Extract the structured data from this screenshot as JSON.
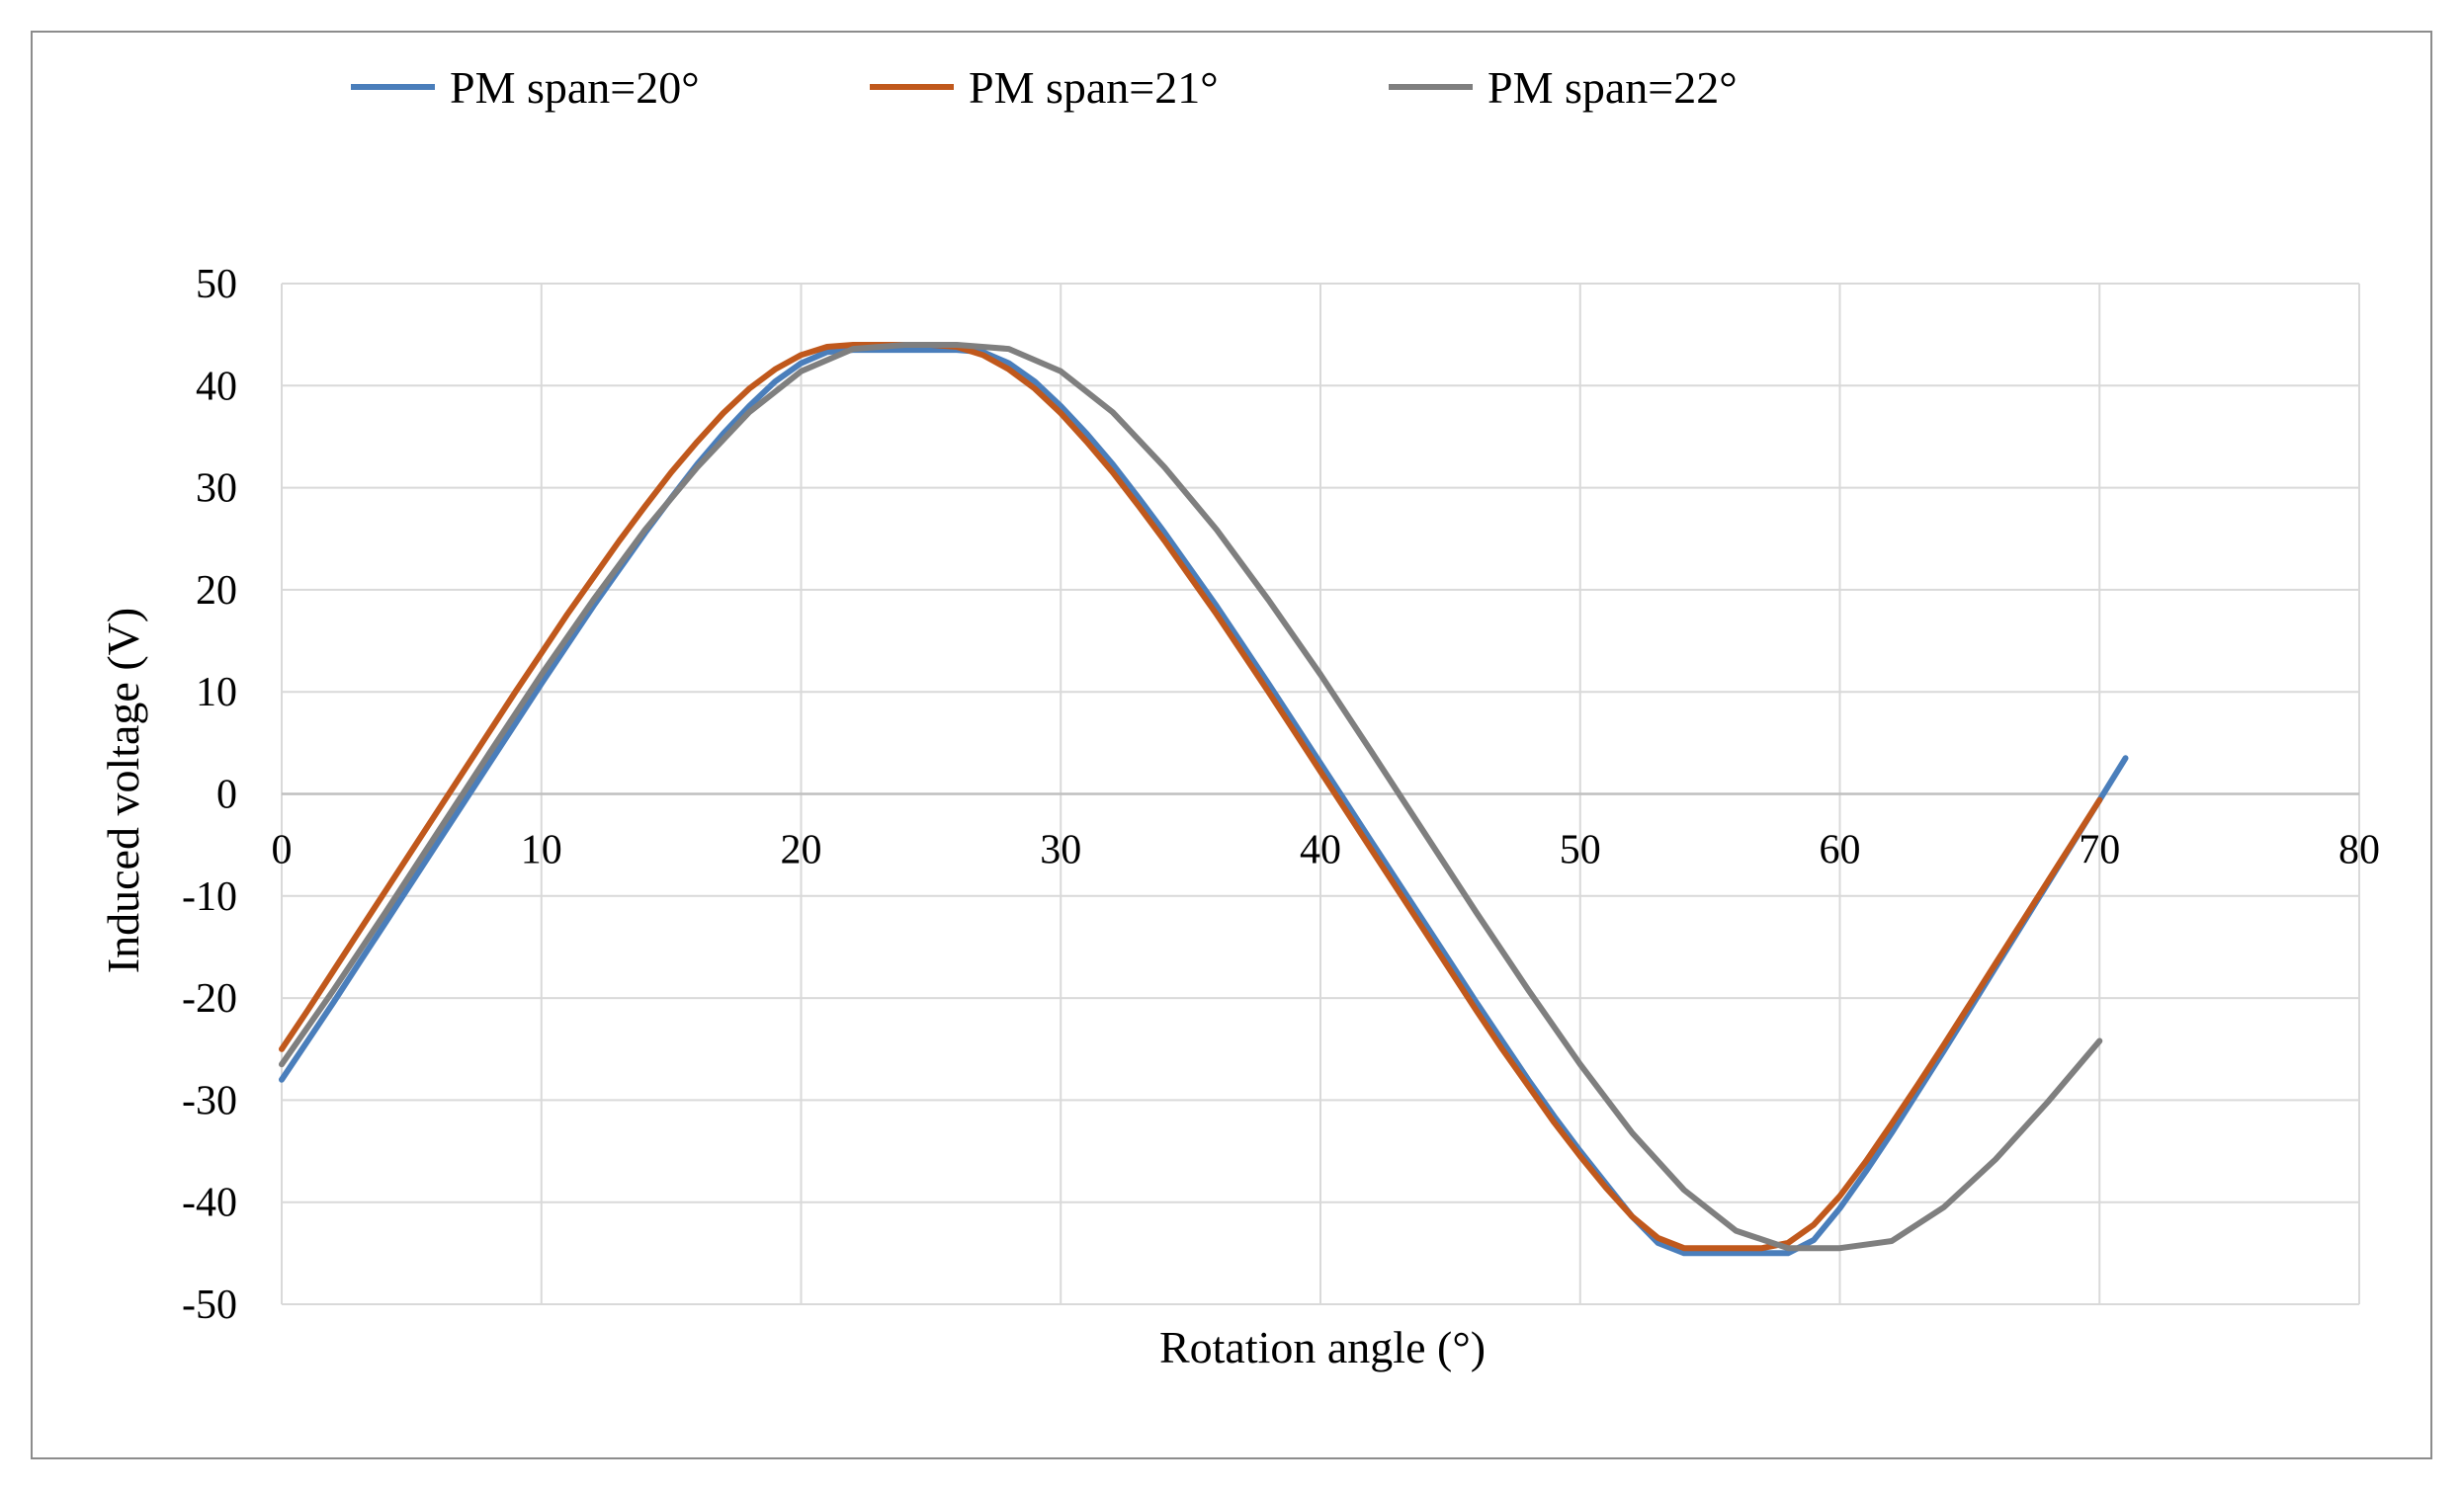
{
  "chart_data": {
    "type": "line",
    "title": "",
    "xlabel": "Rotation  angle  (°)",
    "ylabel": "Induced  voltage  (V)",
    "xlim": [
      0,
      80
    ],
    "ylim": [
      -50,
      50
    ],
    "xticks": [
      0,
      10,
      20,
      30,
      40,
      50,
      60,
      70,
      80
    ],
    "yticks": [
      50,
      40,
      30,
      20,
      10,
      0,
      -10,
      -20,
      -30,
      -40,
      -50
    ],
    "grid": true,
    "legend_position": "top",
    "series": [
      {
        "name": "PM span=20°",
        "color": "#4a7ebb",
        "shift": 0.0,
        "amp": 43.5,
        "x": [
          0,
          1,
          2,
          3,
          4,
          5,
          6,
          7,
          8,
          9,
          10,
          11,
          12,
          13,
          14,
          15,
          16,
          17,
          18,
          19,
          20,
          21,
          22,
          23,
          24,
          25,
          26,
          27,
          28,
          29,
          30,
          31,
          32,
          33,
          34,
          35,
          36,
          37,
          38,
          39,
          40,
          41,
          42,
          43,
          44,
          45,
          46,
          47,
          48,
          49,
          50,
          51,
          52,
          53,
          54,
          55,
          56,
          57,
          58,
          59,
          60,
          61,
          62,
          63,
          64,
          65,
          66,
          67,
          68,
          69,
          70,
          71
        ],
        "y": [
          -28,
          -24.2,
          -20.4,
          -16.5,
          -12.6,
          -8.7,
          -4.8,
          -0.9,
          3,
          6.9,
          10.8,
          14.6,
          18.4,
          22,
          25.6,
          29,
          32.3,
          35.3,
          38,
          40.4,
          42.2,
          43.3,
          43.5,
          43.5,
          43.5,
          43.5,
          43.5,
          43.3,
          42.2,
          40.4,
          38,
          35.3,
          32.3,
          29,
          25.6,
          22,
          18.4,
          14.6,
          10.8,
          6.9,
          3,
          -0.9,
          -4.8,
          -8.7,
          -12.6,
          -16.5,
          -20.4,
          -24.2,
          -28,
          -31.6,
          -35,
          -38.2,
          -41.4,
          -44,
          -45,
          -45,
          -45,
          -45,
          -45,
          -43.7,
          -40.6,
          -37,
          -33.2,
          -29.2,
          -25.2,
          -21.1,
          -17,
          -12.9,
          -8.8,
          -4.7,
          -0.6,
          3.5
        ]
      },
      {
        "name": "PM span=21°",
        "color": "#c0581c",
        "shift": -0.7,
        "amp": 44.0,
        "x": [
          0,
          1,
          2,
          3,
          4,
          5,
          6,
          7,
          8,
          9,
          10,
          11,
          12,
          13,
          14,
          15,
          16,
          17,
          18,
          19,
          20,
          21,
          22,
          23,
          24,
          25,
          26,
          27,
          28,
          29,
          30,
          31,
          32,
          33,
          34,
          35,
          36,
          37,
          38,
          39,
          40,
          41,
          42,
          43,
          44,
          45,
          46,
          47,
          48,
          49,
          50,
          51,
          52,
          53,
          54,
          55,
          56,
          57,
          58,
          59,
          60,
          61,
          62,
          63,
          64,
          65,
          66,
          67,
          68,
          69,
          70
        ],
        "y": [
          -25,
          -21.2,
          -17.3,
          -13.4,
          -9.5,
          -5.6,
          -1.7,
          2.2,
          6.1,
          10,
          13.8,
          17.6,
          21.2,
          24.8,
          28.2,
          31.5,
          34.5,
          37.3,
          39.7,
          41.6,
          43,
          43.8,
          44,
          44,
          44,
          44,
          43.8,
          43,
          41.6,
          39.7,
          37.3,
          34.5,
          31.5,
          28.2,
          24.8,
          21.2,
          17.6,
          13.8,
          10,
          6.1,
          2.2,
          -1.7,
          -5.6,
          -9.5,
          -13.4,
          -17.3,
          -21.2,
          -25,
          -28.6,
          -32.2,
          -35.5,
          -38.6,
          -41.4,
          -43.5,
          -44.5,
          -44.5,
          -44.5,
          -44.5,
          -44,
          -42.2,
          -39.4,
          -36,
          -32.3,
          -28.5,
          -24.6,
          -20.6,
          -16.6,
          -12.6,
          -8.6,
          -4.6,
          -0.6
        ]
      },
      {
        "name": "PM span=22°",
        "color": "#7f7f7f",
        "shift": -0.35,
        "amp": 44.0,
        "x": [
          0,
          2,
          4,
          6,
          8,
          10,
          12,
          14,
          16,
          18,
          20,
          22,
          24,
          26,
          28,
          30,
          32,
          34,
          36,
          38,
          40,
          42,
          44,
          46,
          48,
          50,
          52,
          54,
          56,
          58,
          60,
          62,
          64,
          66,
          68,
          70
        ],
        "y": [
          -26.5,
          -19.2,
          -11.6,
          -3.8,
          4,
          11.7,
          19,
          25.9,
          32,
          37.4,
          41.4,
          43.6,
          44,
          44,
          43.6,
          41.4,
          37.4,
          32,
          25.9,
          19,
          11.7,
          4,
          -3.8,
          -11.6,
          -19.2,
          -26.5,
          -33.2,
          -38.8,
          -42.8,
          -44.5,
          -44.5,
          -43.8,
          -40.5,
          -35.8,
          -30.2,
          -24.2
        ]
      }
    ]
  }
}
